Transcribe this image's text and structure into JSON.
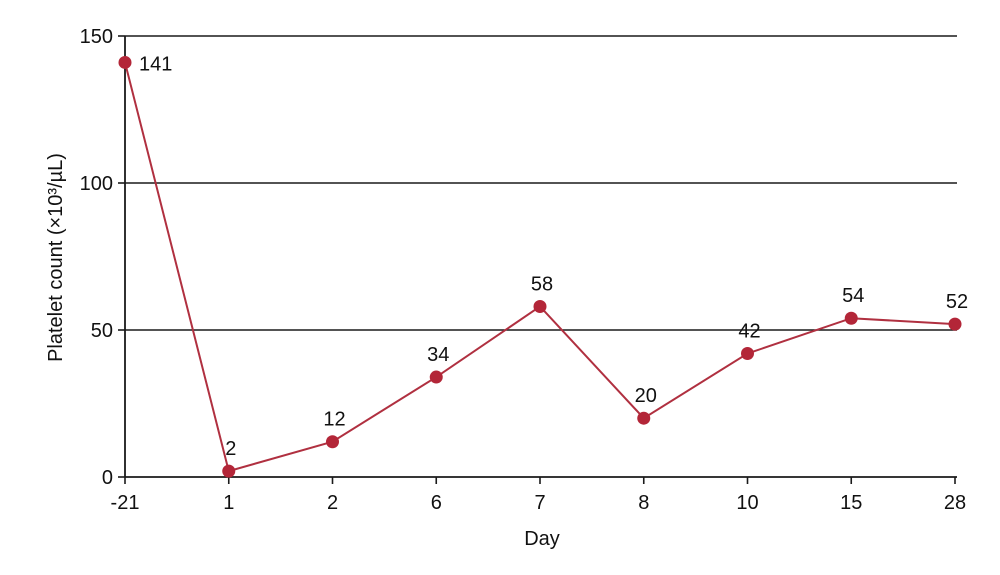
{
  "chart_data": {
    "type": "line",
    "title": "",
    "xlabel": "Day",
    "ylabel": "Platelet count (×10³/µL)",
    "categories": [
      "-21",
      "1",
      "2",
      "6",
      "7",
      "8",
      "10",
      "15",
      "28"
    ],
    "series": [
      {
        "values": [
          141,
          2,
          12,
          34,
          58,
          20,
          42,
          54,
          52
        ],
        "labels": [
          "141",
          "2",
          "12",
          "34",
          "58",
          "20",
          "42",
          "54",
          "52"
        ]
      }
    ],
    "ylim": [
      0,
      150
    ],
    "yticks": [
      0,
      50,
      100,
      150
    ],
    "ytick_labels": [
      "0",
      "50",
      "100",
      "150"
    ],
    "grid": "horizontal",
    "legend": "none",
    "colors": {
      "series": "#b03040",
      "marker": "#b32638",
      "grid": "#1a1a1a",
      "axis": "#1a1a1a"
    }
  }
}
